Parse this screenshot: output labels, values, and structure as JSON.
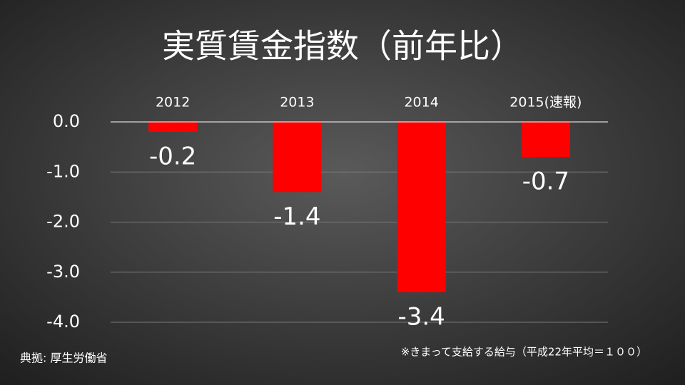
{
  "chart_data": {
    "type": "bar",
    "title": "実質賃金指数（前年比）",
    "categories": [
      "2012",
      "2013",
      "2014",
      "2015(速報)"
    ],
    "values": [
      -0.2,
      -1.4,
      -3.4,
      -0.7
    ],
    "value_labels": [
      "-0.2",
      "-1.4",
      "-3.4",
      "-0.7"
    ],
    "color": "#ff0000",
    "ylim": [
      -4,
      0
    ],
    "yticks": [
      {
        "value": 0,
        "label": "0.0"
      },
      {
        "value": -1,
        "label": "-1.0"
      },
      {
        "value": -2,
        "label": "-2.0"
      },
      {
        "value": -3,
        "label": "-3.0"
      },
      {
        "value": -4,
        "label": "-4.0"
      }
    ],
    "grid": true,
    "source": "典拠: 厚生労働省",
    "note": "※きまって支給する給与（平成22年平均＝１００）"
  }
}
